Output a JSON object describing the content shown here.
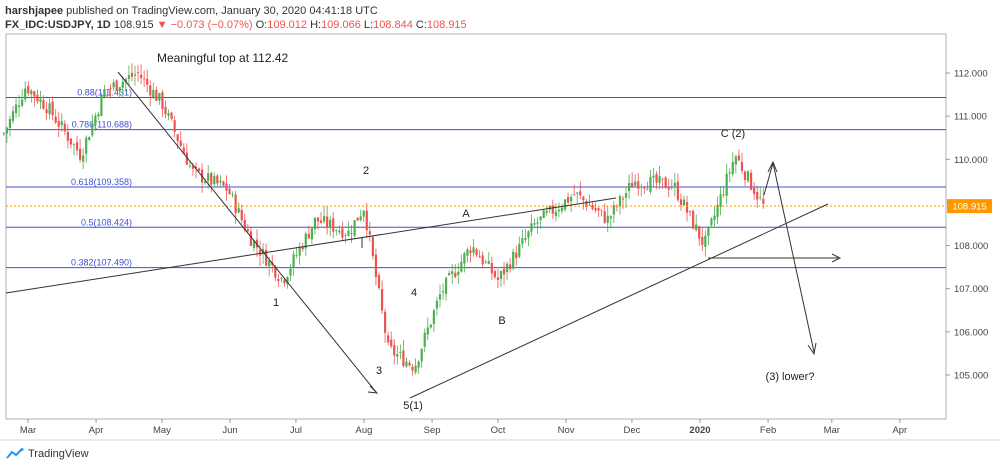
{
  "header": {
    "author": "harshjapee",
    "published": "published on TradingView.com, January 30, 2020 04:41:18 UTC",
    "symbol": "FX_IDC:USDJPY, 1D",
    "last": "108.915",
    "change": "▼ −0.073 (−0.07%)",
    "o_label": "O:",
    "o": "109.012",
    "h_label": "H:",
    "h": "109.066",
    "l_label": "L:",
    "l": "108.844",
    "c_label": "C:",
    "c": "108.915"
  },
  "footer": {
    "brand": "TradingView"
  },
  "colors": {
    "up": "#26a69a",
    "down": "#ef5350",
    "up_candle": "#4caf50",
    "fib": "#3f51d0",
    "price_line": "#ff9800",
    "price_badge": "#ff9800"
  },
  "chart_data": {
    "type": "candlestick",
    "title": "FX_IDC:USDJPY, 1D",
    "y_ticks": [
      105.0,
      106.0,
      107.0,
      108.0,
      109.0,
      110.0,
      111.0,
      112.0
    ],
    "y_tick_labels": [
      "105.000",
      "106.000",
      "107.000",
      "108.000",
      "109.000",
      "110.000",
      "111.000",
      "112.000"
    ],
    "x_ticks": [
      "Mar",
      "Apr",
      "May",
      "Jun",
      "Jul",
      "Aug",
      "Sep",
      "Oct",
      "Nov",
      "Dec",
      "2020",
      "Feb",
      "Mar",
      "Apr"
    ],
    "last_price": 108.915,
    "last_price_label": "108.915",
    "fib_levels": [
      {
        "label": "0.88(111.431)",
        "value": 111.431
      },
      {
        "label": "0.786(110.688)",
        "value": 110.688
      },
      {
        "label": "0.618(109.358)",
        "value": 109.358
      },
      {
        "label": "0.5(108.424)",
        "value": 108.424
      },
      {
        "label": "0.382(107.490)",
        "value": 107.49
      }
    ],
    "annotations": [
      {
        "text": "Meaningful top at 112.42"
      },
      {
        "text": "1"
      },
      {
        "text": "2"
      },
      {
        "text": "3"
      },
      {
        "text": "4"
      },
      {
        "text": "5(1)"
      },
      {
        "text": "A"
      },
      {
        "text": "B"
      },
      {
        "text": "C (2)"
      },
      {
        "text": "(3) lower?"
      }
    ],
    "price_path": [
      {
        "date": "2019-02-18",
        "price": 110.6
      },
      {
        "date": "2019-02-28",
        "price": 111.7
      },
      {
        "date": "2019-03-10",
        "price": 111.2
      },
      {
        "date": "2019-03-25",
        "price": 110.1
      },
      {
        "date": "2019-04-05",
        "price": 111.6
      },
      {
        "date": "2019-04-20",
        "price": 112.0
      },
      {
        "date": "2019-05-01",
        "price": 111.3
      },
      {
        "date": "2019-05-15",
        "price": 109.7
      },
      {
        "date": "2019-05-31",
        "price": 109.3
      },
      {
        "date": "2019-06-10",
        "price": 108.2
      },
      {
        "date": "2019-06-25",
        "price": 107.2
      },
      {
        "date": "2019-07-10",
        "price": 108.6
      },
      {
        "date": "2019-07-25",
        "price": 108.3
      },
      {
        "date": "2019-08-01",
        "price": 108.9
      },
      {
        "date": "2019-08-12",
        "price": 105.6
      },
      {
        "date": "2019-08-24",
        "price": 105.2
      },
      {
        "date": "2019-09-05",
        "price": 106.9
      },
      {
        "date": "2019-09-19",
        "price": 108.0
      },
      {
        "date": "2019-10-01",
        "price": 107.2
      },
      {
        "date": "2019-10-18",
        "price": 108.5
      },
      {
        "date": "2019-11-05",
        "price": 109.2
      },
      {
        "date": "2019-11-20",
        "price": 108.6
      },
      {
        "date": "2019-12-02",
        "price": 109.5
      },
      {
        "date": "2019-12-20",
        "price": 109.4
      },
      {
        "date": "2020-01-03",
        "price": 108.0
      },
      {
        "date": "2020-01-17",
        "price": 110.1
      },
      {
        "date": "2020-01-30",
        "price": 108.9
      }
    ]
  }
}
